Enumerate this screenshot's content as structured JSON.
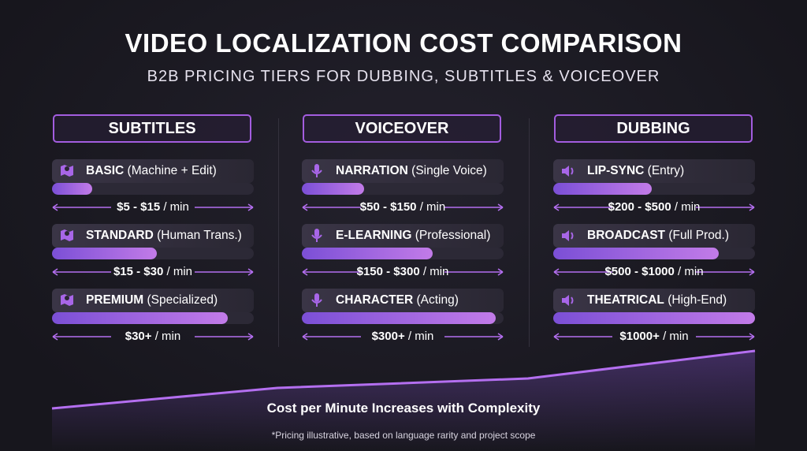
{
  "title": "VIDEO LOCALIZATION COST COMPARISON",
  "subtitle": "B2B PRICING TIERS FOR DUBBING, SUBTITLES & VOICEOVER",
  "columns": [
    {
      "heading": "SUBTITLES",
      "tiers": [
        {
          "name": "BASIC",
          "detail": "(Machine + Edit)",
          "price": "$5 - $15",
          "unit": "/ min"
        },
        {
          "name": "STANDARD",
          "detail": "(Human Trans.)",
          "price": "$15 - $30",
          "unit": "/ min"
        },
        {
          "name": "PREMIUM",
          "detail": "(Specialized)",
          "price": "$30+",
          "unit": "/ min"
        }
      ]
    },
    {
      "heading": "VOICEOVER",
      "tiers": [
        {
          "name": "NARRATION",
          "detail": "(Single Voice)",
          "price": "$50 - $150",
          "unit": "/ min"
        },
        {
          "name": "E-LEARNING",
          "detail": "(Professional)",
          "price": "$150 - $300",
          "unit": "/ min"
        },
        {
          "name": "CHARACTER",
          "detail": "(Acting)",
          "price": "$300+",
          "unit": "/ min"
        }
      ]
    },
    {
      "heading": "DUBBING",
      "tiers": [
        {
          "name": "LIP-SYNC",
          "detail": "(Entry)",
          "price": "$200 - $500",
          "unit": "/ min"
        },
        {
          "name": "BROADCAST",
          "detail": "(Full Prod.)",
          "price": "$500 - $1000",
          "unit": "/ min"
        },
        {
          "name": "THEATRICAL",
          "detail": "(High-End)",
          "price": "$1000+",
          "unit": "/ min"
        }
      ]
    }
  ],
  "trend_caption": "Cost per Minute Increases with Complexity",
  "footnote": "*Pricing illustrative, based on language rarity and project scope"
}
